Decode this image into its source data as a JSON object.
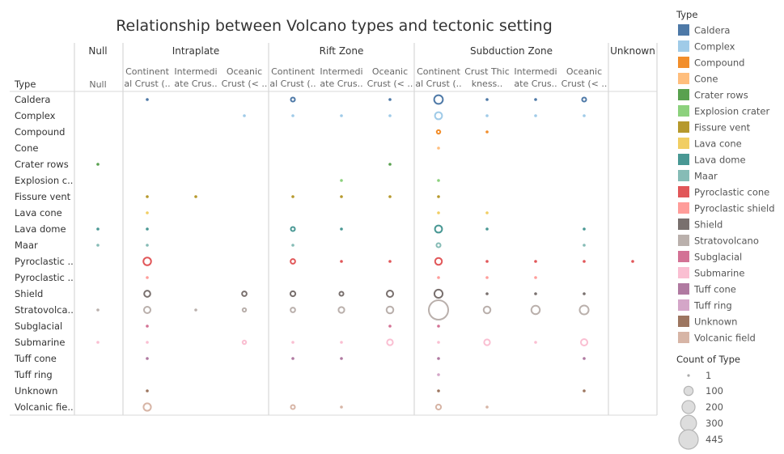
{
  "chart_data": {
    "type": "scatter",
    "title": "Relationship between Volcano types and tectonic setting",
    "row_header": "Type",
    "groups": [
      {
        "name": "Null",
        "columns": [
          "Null"
        ]
      },
      {
        "name": "Intraplate",
        "columns": [
          "Continent|al Crust (..",
          "Intermedi|ate Crus..",
          "Oceanic|Crust (< .."
        ]
      },
      {
        "name": "Rift Zone",
        "columns": [
          "Continent|al Crust (..",
          "Intermedi|ate Crus..",
          "Oceanic|Crust (< .."
        ]
      },
      {
        "name": "Subduction Zone",
        "columns": [
          "Continent|al Crust (..",
          "Crust Thic|kness..",
          "Intermedi|ate Crus..",
          "Oceanic|Crust (< .."
        ]
      },
      {
        "name": "Unknown",
        "columns": [
          ""
        ]
      }
    ],
    "rows": [
      "Caldera",
      "Complex",
      "Compound",
      "Cone",
      "Crater rows",
      "Explosion c..",
      "Fissure vent",
      "Lava cone",
      "Lava dome",
      "Maar",
      "Pyroclastic ..",
      "Pyroclastic ..",
      "Shield",
      "Stratovolca..",
      "Subglacial",
      "Submarine",
      "Tuff cone",
      "Tuff ring",
      "Unknown",
      "Volcanic fie.."
    ],
    "types": [
      "Caldera",
      "Complex",
      "Compound",
      "Cone",
      "Crater rows",
      "Explosion crater",
      "Fissure vent",
      "Lava cone",
      "Lava dome",
      "Maar",
      "Pyroclastic cone",
      "Pyroclastic shield",
      "Shield",
      "Stratovolcano",
      "Subglacial",
      "Submarine",
      "Tuff cone",
      "Tuff ring",
      "Unknown",
      "Volcanic field"
    ],
    "colors": [
      "#4e79a7",
      "#a0cbe8",
      "#f28e2b",
      "#ffbe7d",
      "#59a14f",
      "#8cd17d",
      "#b6992d",
      "#f1ce63",
      "#499894",
      "#86bcb6",
      "#e15759",
      "#ff9d9a",
      "#79706e",
      "#bab0ac",
      "#d37295",
      "#fabfd2",
      "#b07aa1",
      "#d4a6c8",
      "#9d7660",
      "#d7b5a6"
    ],
    "points": [
      {
        "row": 0,
        "col": 1,
        "count": 4
      },
      {
        "row": 0,
        "col": 4,
        "count": 20
      },
      {
        "row": 0,
        "col": 6,
        "count": 4
      },
      {
        "row": 0,
        "col": 7,
        "count": 90
      },
      {
        "row": 0,
        "col": 8,
        "count": 4
      },
      {
        "row": 0,
        "col": 9,
        "count": 4
      },
      {
        "row": 0,
        "col": 10,
        "count": 20
      },
      {
        "row": 1,
        "col": 3,
        "count": 3
      },
      {
        "row": 1,
        "col": 4,
        "count": 3
      },
      {
        "row": 1,
        "col": 5,
        "count": 3
      },
      {
        "row": 1,
        "col": 6,
        "count": 3
      },
      {
        "row": 1,
        "col": 7,
        "count": 60
      },
      {
        "row": 1,
        "col": 8,
        "count": 3
      },
      {
        "row": 1,
        "col": 9,
        "count": 3
      },
      {
        "row": 1,
        "col": 10,
        "count": 3
      },
      {
        "row": 2,
        "col": 7,
        "count": 15
      },
      {
        "row": 2,
        "col": 8,
        "count": 4
      },
      {
        "row": 3,
        "col": 7,
        "count": 3
      },
      {
        "row": 4,
        "col": 0,
        "count": 4
      },
      {
        "row": 4,
        "col": 6,
        "count": 6
      },
      {
        "row": 5,
        "col": 5,
        "count": 3
      },
      {
        "row": 5,
        "col": 7,
        "count": 3
      },
      {
        "row": 6,
        "col": 1,
        "count": 4
      },
      {
        "row": 6,
        "col": 2,
        "count": 4
      },
      {
        "row": 6,
        "col": 4,
        "count": 4
      },
      {
        "row": 6,
        "col": 5,
        "count": 4
      },
      {
        "row": 6,
        "col": 6,
        "count": 4
      },
      {
        "row": 6,
        "col": 7,
        "count": 4
      },
      {
        "row": 7,
        "col": 1,
        "count": 3
      },
      {
        "row": 7,
        "col": 7,
        "count": 3
      },
      {
        "row": 7,
        "col": 8,
        "count": 3
      },
      {
        "row": 8,
        "col": 0,
        "count": 4
      },
      {
        "row": 8,
        "col": 1,
        "count": 4
      },
      {
        "row": 8,
        "col": 4,
        "count": 20
      },
      {
        "row": 8,
        "col": 5,
        "count": 4
      },
      {
        "row": 8,
        "col": 7,
        "count": 60
      },
      {
        "row": 8,
        "col": 8,
        "count": 4
      },
      {
        "row": 8,
        "col": 10,
        "count": 4
      },
      {
        "row": 9,
        "col": 0,
        "count": 3
      },
      {
        "row": 9,
        "col": 1,
        "count": 3
      },
      {
        "row": 9,
        "col": 4,
        "count": 3
      },
      {
        "row": 9,
        "col": 7,
        "count": 20
      },
      {
        "row": 9,
        "col": 10,
        "count": 3
      },
      {
        "row": 10,
        "col": 1,
        "count": 70
      },
      {
        "row": 10,
        "col": 4,
        "count": 25
      },
      {
        "row": 10,
        "col": 5,
        "count": 4
      },
      {
        "row": 10,
        "col": 6,
        "count": 4
      },
      {
        "row": 10,
        "col": 7,
        "count": 55
      },
      {
        "row": 10,
        "col": 8,
        "count": 4
      },
      {
        "row": 10,
        "col": 9,
        "count": 4
      },
      {
        "row": 10,
        "col": 10,
        "count": 4
      },
      {
        "row": 10,
        "col": 11,
        "count": 4
      },
      {
        "row": 11,
        "col": 1,
        "count": 3
      },
      {
        "row": 11,
        "col": 7,
        "count": 3
      },
      {
        "row": 11,
        "col": 8,
        "count": 3
      },
      {
        "row": 11,
        "col": 9,
        "count": 3
      },
      {
        "row": 12,
        "col": 1,
        "count": 45
      },
      {
        "row": 12,
        "col": 3,
        "count": 25
      },
      {
        "row": 12,
        "col": 4,
        "count": 30
      },
      {
        "row": 12,
        "col": 5,
        "count": 20
      },
      {
        "row": 12,
        "col": 6,
        "count": 50
      },
      {
        "row": 12,
        "col": 7,
        "count": 80
      },
      {
        "row": 12,
        "col": 8,
        "count": 5
      },
      {
        "row": 12,
        "col": 9,
        "count": 5
      },
      {
        "row": 12,
        "col": 10,
        "count": 5
      },
      {
        "row": 13,
        "col": 0,
        "count": 4
      },
      {
        "row": 13,
        "col": 1,
        "count": 50
      },
      {
        "row": 13,
        "col": 2,
        "count": 4
      },
      {
        "row": 13,
        "col": 3,
        "count": 15
      },
      {
        "row": 13,
        "col": 4,
        "count": 25
      },
      {
        "row": 13,
        "col": 5,
        "count": 40
      },
      {
        "row": 13,
        "col": 6,
        "count": 55
      },
      {
        "row": 13,
        "col": 7,
        "count": 445
      },
      {
        "row": 13,
        "col": 8,
        "count": 55
      },
      {
        "row": 13,
        "col": 9,
        "count": 85
      },
      {
        "row": 13,
        "col": 10,
        "count": 95
      },
      {
        "row": 14,
        "col": 1,
        "count": 4
      },
      {
        "row": 14,
        "col": 6,
        "count": 4
      },
      {
        "row": 14,
        "col": 7,
        "count": 4
      },
      {
        "row": 15,
        "col": 0,
        "count": 3
      },
      {
        "row": 15,
        "col": 1,
        "count": 3
      },
      {
        "row": 15,
        "col": 3,
        "count": 15
      },
      {
        "row": 15,
        "col": 4,
        "count": 3
      },
      {
        "row": 15,
        "col": 5,
        "count": 3
      },
      {
        "row": 15,
        "col": 6,
        "count": 40
      },
      {
        "row": 15,
        "col": 7,
        "count": 4
      },
      {
        "row": 15,
        "col": 8,
        "count": 40
      },
      {
        "row": 15,
        "col": 9,
        "count": 3
      },
      {
        "row": 15,
        "col": 10,
        "count": 50
      },
      {
        "row": 16,
        "col": 1,
        "count": 4
      },
      {
        "row": 16,
        "col": 4,
        "count": 10
      },
      {
        "row": 16,
        "col": 5,
        "count": 4
      },
      {
        "row": 16,
        "col": 7,
        "count": 4
      },
      {
        "row": 16,
        "col": 10,
        "count": 4
      },
      {
        "row": 17,
        "col": 7,
        "count": 3
      },
      {
        "row": 18,
        "col": 1,
        "count": 4
      },
      {
        "row": 18,
        "col": 7,
        "count": 4
      },
      {
        "row": 18,
        "col": 10,
        "count": 4
      },
      {
        "row": 19,
        "col": 1,
        "count": 65
      },
      {
        "row": 19,
        "col": 4,
        "count": 20
      },
      {
        "row": 19,
        "col": 5,
        "count": 5
      },
      {
        "row": 19,
        "col": 7,
        "count": 30
      },
      {
        "row": 19,
        "col": 8,
        "count": 4
      }
    ],
    "legend": {
      "color_title": "Type",
      "size_title": "Count of Type",
      "size_values": [
        1,
        100,
        200,
        300,
        445
      ],
      "placement": "right"
    }
  }
}
